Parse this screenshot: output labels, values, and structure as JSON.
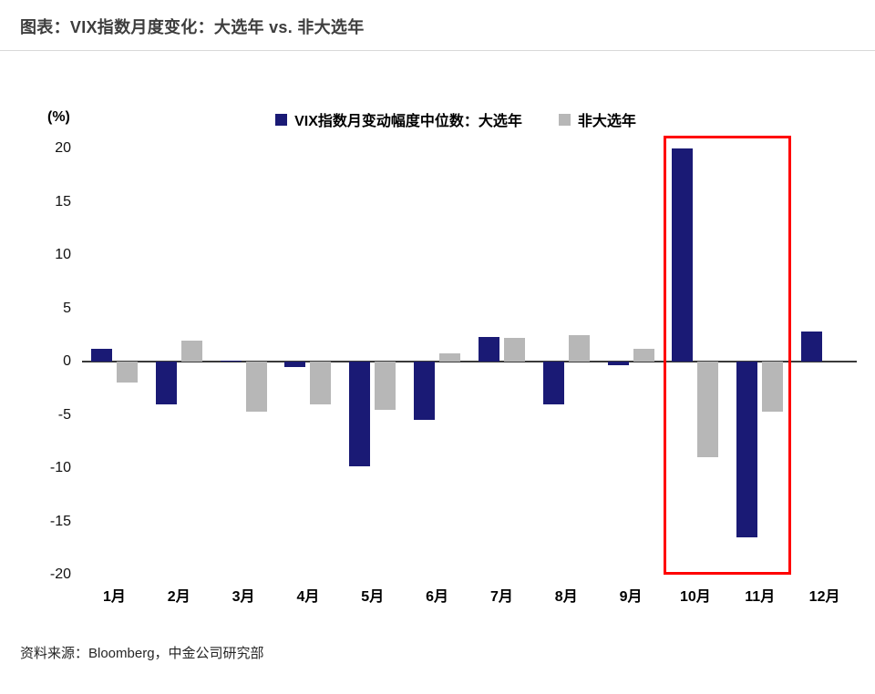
{
  "page": {
    "source": "资料来源：Bloomberg，中金公司研究部"
  },
  "chart_data": {
    "type": "bar",
    "title": "图表：VIX指数月度变化：大选年 vs. 非大选年",
    "xlabel": "",
    "ylabel": "(%)",
    "unit_label": "(%)",
    "categories": [
      "1月",
      "2月",
      "3月",
      "4月",
      "5月",
      "6月",
      "7月",
      "8月",
      "9月",
      "10月",
      "11月",
      "12月"
    ],
    "series": [
      {
        "name": "VIX指数月变动幅度中位数：大选年",
        "color": "#1a1a75",
        "values": [
          1.2,
          -4,
          0.1,
          -0.5,
          -9.8,
          -5.5,
          2.3,
          -4,
          -0.3,
          20,
          -16.5,
          2.8
        ]
      },
      {
        "name": "非大选年",
        "color": "#b7b7b7",
        "values": [
          -2,
          2,
          -4.7,
          -4,
          -4.5,
          0.8,
          2.2,
          2.5,
          1.2,
          -9,
          -4.7,
          0
        ]
      }
    ],
    "ylim": [
      -20,
      20
    ],
    "yticks": [
      20,
      15,
      10,
      5,
      0,
      -5,
      -10,
      -15,
      -20
    ],
    "grid": false,
    "legend_position": "top",
    "highlight": {
      "categories": [
        "10月",
        "11月"
      ],
      "color": "#ff0000"
    }
  }
}
